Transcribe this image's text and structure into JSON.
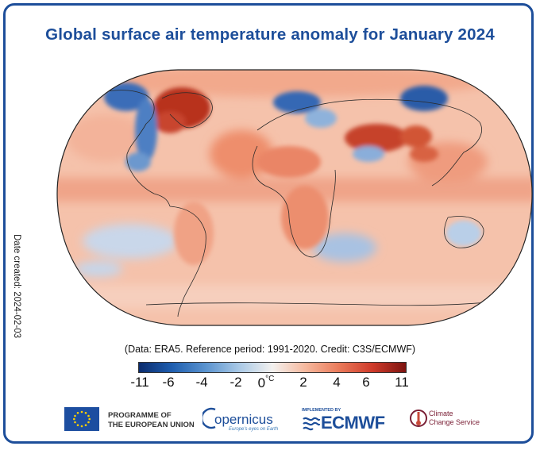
{
  "title": "Global surface air temperature anomaly for January 2024",
  "date_created": "Date created: 2024-02-03",
  "credit_line": "(Data: ERA5.  Reference period: 1991-2020.  Credit: C3S/ECMWF)",
  "colorbar": {
    "unit": "°C",
    "ticks": [
      "-11",
      "-6",
      "-4",
      "-2",
      "0",
      "2",
      "4",
      "6",
      "11"
    ],
    "colors": [
      "#0b2c6e",
      "#1f5fb0",
      "#5a93cf",
      "#a9c9e6",
      "#f3f1ef",
      "#f6b89d",
      "#ea7a5a",
      "#cf3a2a",
      "#7d1410"
    ]
  },
  "map": {
    "projection": "Robinson",
    "variable": "surface air temperature anomaly",
    "colors": {
      "warm": "#e9896a",
      "warm_light": "#f7c9b4",
      "hot": "#b5281f",
      "cold": "#2e64b2",
      "cool": "#a7c4e3",
      "neutral": "#f4ecea"
    }
  },
  "logos": {
    "eu": [
      "PROGRAMME OF",
      "THE EUROPEAN UNION"
    ],
    "copernicus_name": "opernicus",
    "copernicus_tagline": "Europe's eyes on Earth",
    "ecmwf_implemented": "IMPLEMENTED BY",
    "ecmwf_name": "ECMWF",
    "c3s": [
      "Climate",
      "Change Service"
    ]
  }
}
